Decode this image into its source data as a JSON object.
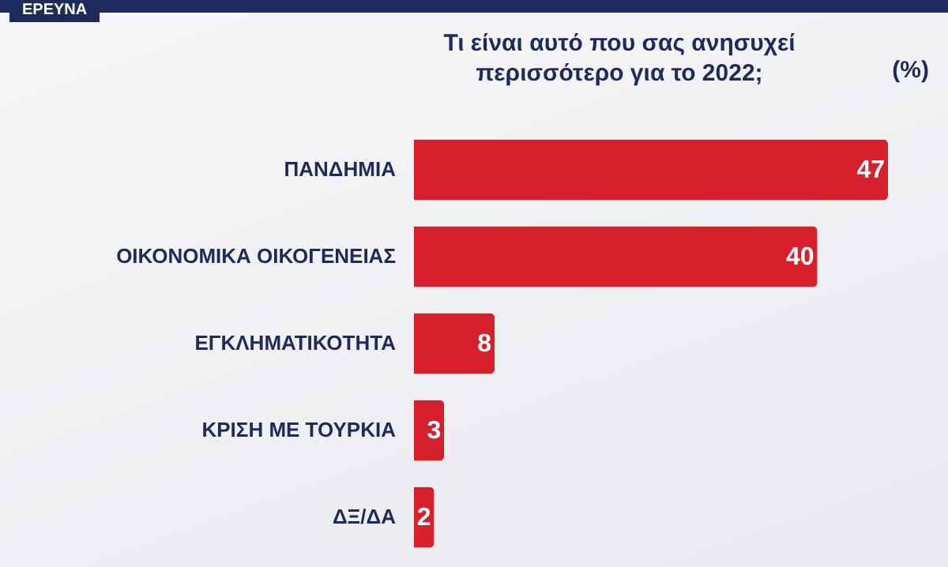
{
  "chart_data": {
    "type": "bar",
    "orientation": "horizontal",
    "title": [
      "Τι είναι αυτό που σας ανησυχεί",
      "περισσότερο για το 2022;"
    ],
    "categories": [
      "ΠΑΝΔΗΜΙΑ",
      "ΟΙΚΟΝΟΜΙΚΑ ΟΙΚΟΓΕΝΕΙΑΣ",
      "ΕΓΚΛΗΜΑΤΙΚΟΤΗΤΑ",
      "ΚΡΙΣΗ ΜΕ ΤΟΥΡΚΙΑ",
      "ΔΞ/ΔΑ"
    ],
    "values": [
      47,
      40,
      8,
      3,
      2
    ],
    "color": "#d8202c",
    "data_labels": true,
    "annotations": [
      "ΕΡΕΥΝΑ",
      "(%)"
    ]
  }
}
